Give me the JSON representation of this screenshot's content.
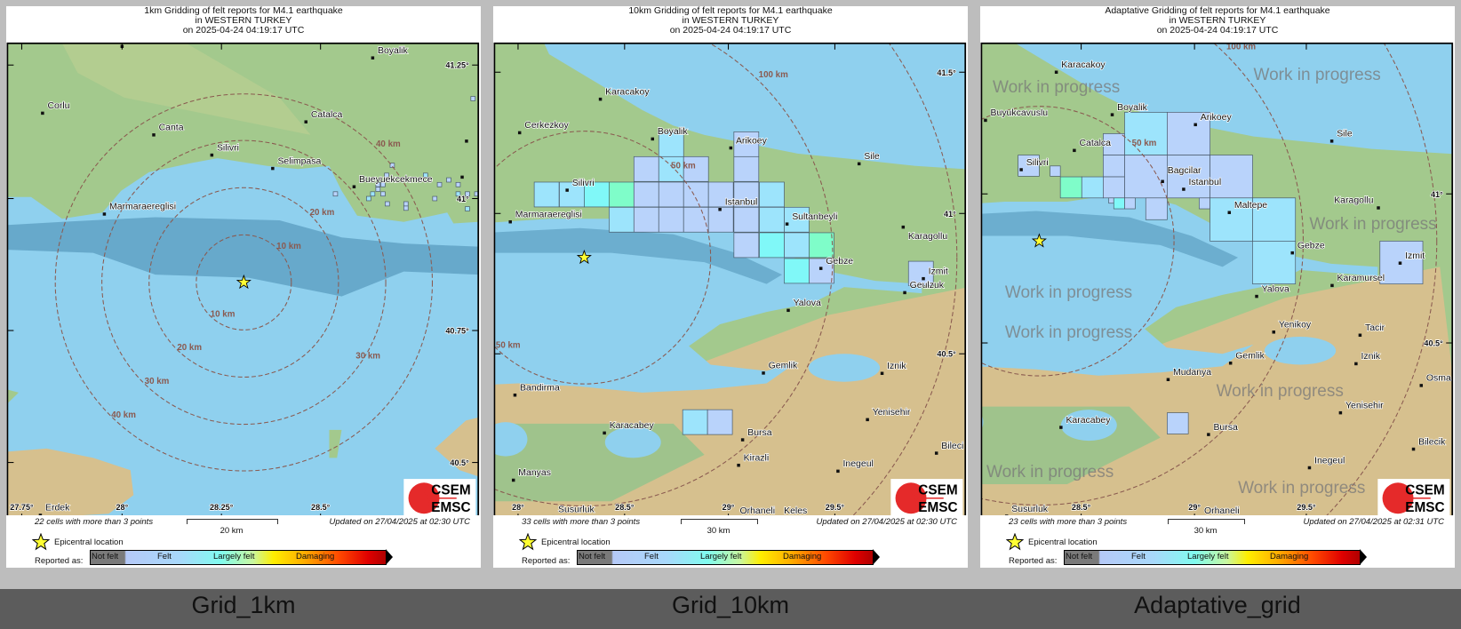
{
  "panels": [
    {
      "title_lines": [
        "1km Gridding of felt reports for M4.1 earthquake",
        "in WESTERN TURKEY",
        "on  2025-04-24 04:19:17 UTC"
      ],
      "caption": "Grid_1km",
      "cells_note": "22 cells with more than 3 points",
      "scale_label": "20 km",
      "updated": "Updated on 27/04/2025 at 02:30 UTC",
      "cities": [
        "Boyalik",
        "Corlu",
        "Canta",
        "Catalca",
        "Silivri",
        "Selimpasa",
        "Bueyuekcekmece",
        "Marmaraereglisi",
        "Erdek"
      ],
      "lat_labels": [
        "41.25°",
        "41°",
        "40.75°",
        "40.5°"
      ],
      "lon_labels": [
        "27.75°",
        "28°",
        "28.25°",
        "28.5°"
      ],
      "ring_labels": [
        "10 km",
        "10 km",
        "20 km",
        "20 km",
        "30 km",
        "30 km",
        "40 km",
        "40 km"
      ]
    },
    {
      "title_lines": [
        "10km Gridding of felt reports for M4.1 earthquake",
        "in WESTERN TURKEY",
        "on  2025-04-24 04:19:17 UTC"
      ],
      "caption": "Grid_10km",
      "cells_note": "33 cells with more than 3 points",
      "scale_label": "30 km",
      "updated": "Updated on 27/04/2025 at 02:30 UTC",
      "cities": [
        "Karacakoy",
        "Cerkezkoy",
        "Boyalik",
        "Arikoey",
        "Sile",
        "Silivri",
        "Istanbul",
        "Marmaraereglisi",
        "Sultanbeyli",
        "Karagollu",
        "Gebze",
        "Izmit",
        "Geulzuk",
        "Yalova",
        "Gemlik",
        "Iznik",
        "Bandirma",
        "Yenisehir",
        "Karacabey",
        "Bursa",
        "Bileci",
        "Kirazli",
        "Inegeul",
        "Manyas",
        "Susurluk",
        "Orhaneli",
        "Keles"
      ],
      "lat_labels": [
        "41.5°",
        "41°",
        "40.5°"
      ],
      "lon_labels": [
        "28°",
        "28.5°",
        "29°",
        "29.5°"
      ],
      "ring_labels": [
        "50 km",
        "50 km",
        "100 km"
      ]
    },
    {
      "title_lines": [
        "Adaptative Gridding of felt reports for M4.1 earthquake",
        "in WESTERN TURKEY",
        "on  2025-04-24 04:19:17 UTC"
      ],
      "caption": "Adaptative_grid",
      "cells_note": "23 cells with more than 3 points",
      "scale_label": "30 km",
      "updated": "Updated on 27/04/2025 at 02:31 UTC",
      "cities": [
        "Karacakoy",
        "Buyukcavuslu",
        "Boyalik",
        "Arikoey",
        "Catalca",
        "Sile",
        "Silivri",
        "Bagcilar",
        "Istanbul",
        "Karagollu",
        "Maltepe",
        "Gebze",
        "Izmit",
        "Karamursel",
        "Yalova",
        "Yenikoy",
        "Tacir",
        "Gemlik",
        "Iznik",
        "Mudanya",
        "Osma",
        "Yenisehir",
        "Karacabey",
        "Bursa",
        "Bilecik",
        "Inegeul",
        "Susurluk",
        "Orhaneli"
      ],
      "lat_labels": [
        "41°",
        "40.5°"
      ],
      "lon_labels": [
        "28.5°",
        "29°",
        "29.5°"
      ],
      "ring_labels": [
        "50 km",
        "100 km"
      ],
      "watermark": "Work in progress"
    }
  ],
  "legend": {
    "epicentre": "Epicentral location",
    "reported_as": "Reported as:",
    "scale": [
      "Not felt",
      "Felt",
      "Largely felt",
      "Damaging"
    ]
  },
  "logo": {
    "top": "CSEM",
    "bottom": "EMSC"
  },
  "colors": {
    "sea": "#8fd0ee",
    "land": "#a3c98d",
    "mountain": "#d6c08e",
    "ring": "#8a5a50",
    "cell_felt": "#b9d3fb",
    "cell_felt_plus": "#9de4fc",
    "cell_strong": "#80f8f8",
    "cell_largely": "#7ffdc9",
    "epicentre": "#ffff33"
  },
  "chart_data": [
    {
      "type": "map-grid",
      "title": "1km Gridding of felt reports for M4.1 earthquake in WESTERN TURKEY on 2025-04-24 04:19:17 UTC",
      "cells": 22,
      "rings_km": [
        10,
        20,
        30,
        40
      ]
    },
    {
      "type": "map-grid",
      "title": "10km Gridding of felt reports for M4.1 earthquake in WESTERN TURKEY on 2025-04-24 04:19:17 UTC",
      "cells": 33,
      "rings_km": [
        50,
        100
      ]
    },
    {
      "type": "map-grid",
      "title": "Adaptative Gridding of felt reports for M4.1 earthquake in WESTERN TURKEY on 2025-04-24 04:19:17 UTC",
      "cells": 23,
      "rings_km": [
        50,
        100
      ]
    }
  ]
}
